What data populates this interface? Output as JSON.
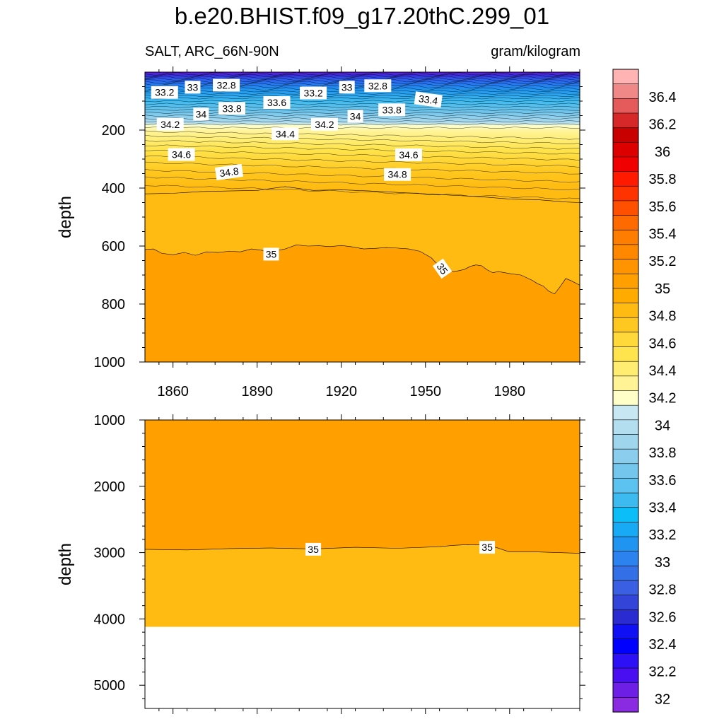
{
  "title": "b.e20.BHIST.f09_g17.20thC.299_01",
  "subtitle_left": "SALT, ARC_66N-90N",
  "subtitle_right": "gram/kilogram",
  "chart_data": [
    {
      "type": "contour",
      "panel": "upper",
      "variable": "SALT",
      "region": "ARC_66N-90N",
      "units": "gram/kilogram",
      "xlabel": "",
      "ylabel": "depth",
      "xlim": [
        1850,
        2005
      ],
      "ylim": [
        1000,
        0
      ],
      "xticks": [
        1860,
        1890,
        1920,
        1950,
        1980
      ],
      "xtick_labels": [
        "1860",
        "1890",
        "1920",
        "1950",
        "1980"
      ],
      "yticks": [
        200,
        400,
        600,
        800,
        1000
      ],
      "ytick_labels": [
        "200",
        "400",
        "600",
        "800",
        "1000"
      ],
      "contour_labels": [
        {
          "text": "33.2",
          "x": 1857,
          "depth": 70
        },
        {
          "text": "33",
          "x": 1867,
          "depth": 52
        },
        {
          "text": "32.8",
          "x": 1879,
          "depth": 45
        },
        {
          "text": "33.6",
          "x": 1897,
          "depth": 105
        },
        {
          "text": "33.2",
          "x": 1910,
          "depth": 72
        },
        {
          "text": "33",
          "x": 1922,
          "depth": 52
        },
        {
          "text": "32.8",
          "x": 1933,
          "depth": 47
        },
        {
          "text": "33.4",
          "x": 1951,
          "depth": 95
        },
        {
          "text": "34",
          "x": 1870,
          "depth": 145
        },
        {
          "text": "33.8",
          "x": 1881,
          "depth": 125
        },
        {
          "text": "34",
          "x": 1925,
          "depth": 152
        },
        {
          "text": "33.8",
          "x": 1938,
          "depth": 130
        },
        {
          "text": "34.2",
          "x": 1859,
          "depth": 180
        },
        {
          "text": "34.2",
          "x": 1914,
          "depth": 180
        },
        {
          "text": "34.4",
          "x": 1900,
          "depth": 213
        },
        {
          "text": "34.6",
          "x": 1863,
          "depth": 284
        },
        {
          "text": "34.6",
          "x": 1944,
          "depth": 285
        },
        {
          "text": "34.8",
          "x": 1880,
          "depth": 345
        },
        {
          "text": "34.8",
          "x": 1940,
          "depth": 353
        },
        {
          "text": "35",
          "x": 1895,
          "depth": 628
        },
        {
          "text": "35",
          "x": 1956,
          "depth": 678
        }
      ],
      "contour_35": {
        "x": [
          1850,
          1853,
          1856,
          1860,
          1864,
          1868,
          1872,
          1876,
          1880,
          1884,
          1888,
          1892,
          1896,
          1900,
          1904,
          1908,
          1912,
          1916,
          1920,
          1924,
          1928,
          1932,
          1936,
          1940,
          1944,
          1948,
          1952,
          1954,
          1956,
          1960,
          1962,
          1964,
          1966,
          1968,
          1970,
          1972,
          1974,
          1976,
          1980,
          1984,
          1988,
          1990,
          1992,
          1994,
          1996,
          1998,
          2000,
          2002,
          2005
        ],
        "depth": [
          612,
          610,
          625,
          630,
          622,
          632,
          620,
          622,
          618,
          620,
          610,
          615,
          618,
          610,
          596,
          600,
          599,
          602,
          598,
          603,
          610,
          608,
          605,
          607,
          610,
          618,
          640,
          660,
          680,
          688,
          685,
          680,
          670,
          665,
          668,
          682,
          692,
          688,
          695,
          700,
          718,
          730,
          738,
          756,
          765,
          740,
          712,
          720,
          735
        ]
      },
      "contour_34_8": {
        "x": [
          1850,
          1860,
          1870,
          1880,
          1890,
          1900,
          1910,
          1920,
          1930,
          1940,
          1950,
          1960,
          1970,
          1980,
          1990,
          2000,
          2005
        ],
        "depth": [
          420,
          418,
          412,
          410,
          408,
          395,
          408,
          406,
          410,
          415,
          420,
          425,
          430,
          438,
          440,
          448,
          450
        ]
      }
    },
    {
      "type": "contour",
      "panel": "lower",
      "variable": "SALT",
      "ylabel": "depth",
      "xlim": [
        1850,
        2005
      ],
      "ylim": [
        5350,
        1000
      ],
      "yticks": [
        1000,
        2000,
        3000,
        4000,
        5000
      ],
      "ytick_labels": [
        "1000",
        "2000",
        "3000",
        "4000",
        "5000"
      ],
      "contour_labels": [
        {
          "text": "35",
          "x": 1910,
          "depth": 2950
        },
        {
          "text": "35",
          "x": 1972,
          "depth": 2920
        }
      ],
      "contour_35": {
        "x": [
          1850,
          1865,
          1880,
          1895,
          1910,
          1925,
          1940,
          1955,
          1960,
          1965,
          1970,
          1975,
          1980,
          1990,
          2005
        ],
        "depth": [
          2950,
          2960,
          2940,
          2930,
          2945,
          2920,
          2935,
          2910,
          2890,
          2880,
          2885,
          2920,
          2990,
          2990,
          3010
        ]
      },
      "ocean_floor_depth": 4120
    }
  ],
  "colorbar": {
    "labels": [
      "36.4",
      "36.2",
      "36",
      "35.8",
      "35.6",
      "35.4",
      "35.2",
      "35",
      "34.8",
      "34.6",
      "34.4",
      "34.2",
      "34",
      "33.8",
      "33.6",
      "33.4",
      "33.2",
      "33",
      "32.8",
      "32.6",
      "32.4",
      "32.2",
      "32"
    ],
    "colors": [
      "#ffb3b3",
      "#f08888",
      "#e55a5a",
      "#d62828",
      "#c80000",
      "#dd0000",
      "#f00000",
      "#ff1a00",
      "#ff3300",
      "#ff5000",
      "#ff6a00",
      "#ff7d00",
      "#ff8800",
      "#ff9400",
      "#ffa000",
      "#ffab00",
      "#ffbb11",
      "#ffc820",
      "#ffd83a",
      "#ffe44e",
      "#ffed72",
      "#fff396",
      "#ffffc8",
      "#c7e7f3",
      "#b2def0",
      "#9fd6ee",
      "#8acdec",
      "#75c6ec",
      "#5cc2ef",
      "#3dbbf1",
      "#0bbef8",
      "#18aaf4",
      "#1f95f1",
      "#2c82ee",
      "#3370e8",
      "#3a5fe2",
      "#3344d8",
      "#2b2bd2",
      "#1010f5",
      "#0000ff",
      "#2d10f5",
      "#4a0ff0",
      "#6d1fe6",
      "#8a2be2"
    ]
  }
}
